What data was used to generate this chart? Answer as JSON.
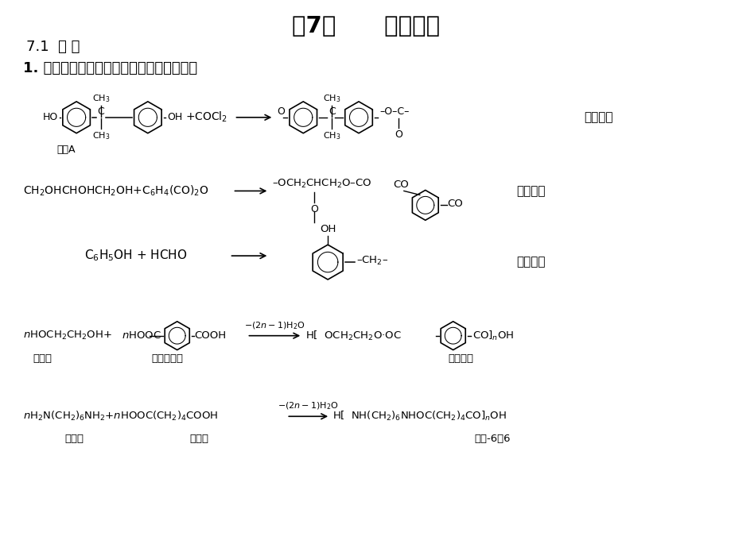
{
  "title": "第7章      逐步聚合",
  "subtitle": "7.1  引 言",
  "point1": "1. 绝大多数缩聚反应是典型的逐步聚合反应",
  "bg_color": "#ffffff",
  "text_color": "#000000",
  "row1_label": "聚碳酸酯",
  "row2_label": "醇酸树脂",
  "row3_label": "酚醛树脂",
  "row4_label1": "乙二醇",
  "row4_label2": "对苯二甲酸",
  "row4_label3": "聚酯涤纶",
  "row4_arrow_label": "-(2n-1)H$_2$O",
  "row5_label1": "己二胺",
  "row5_label2": "己二酸",
  "row5_label3": "尼龙-6，6",
  "row5_arrow_label": "-(2n-1)H$_2$O"
}
